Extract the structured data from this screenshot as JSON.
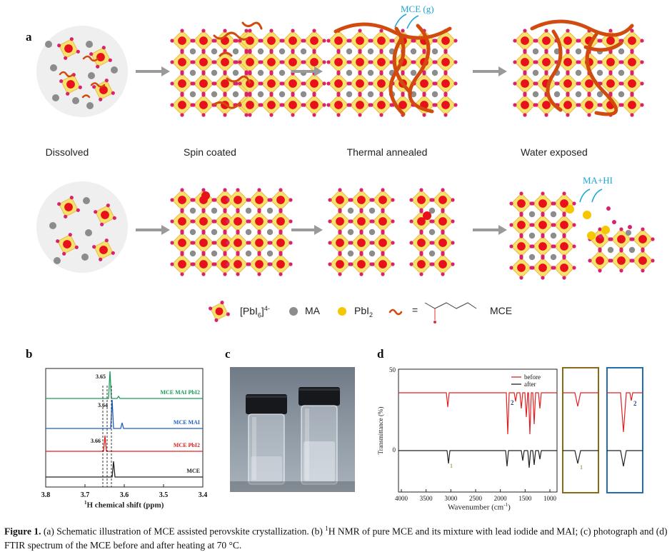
{
  "panels": {
    "a": {
      "letter": "a",
      "stages": [
        "Dissolved",
        "Spin coated",
        "Thermal annealed",
        "Water exposed"
      ],
      "gas_label_top": "MCE (g)",
      "gas_label_bottom": "MA+HI",
      "legend": {
        "pbi6_label": "[PbI6]4-",
        "ma_label": "MA",
        "pbi2_label": "PbI2",
        "equals": "=",
        "mce_label": "MCE"
      },
      "colors": {
        "octahedron": "#f7e36b",
        "octahedron_edge": "#e9b84a",
        "pb_center": "#e8101a",
        "iodide": "#d8226e",
        "ma": "#8c8c8c",
        "pbi2": "#f6c700",
        "mce": "#d14a0e",
        "arrow": "#9a9a9a",
        "gas": "#1aa7d6"
      }
    },
    "b": {
      "letter": "b",
      "xlabel_sup": "1",
      "xlabel": "H chemical shift (ppm)",
      "ticks": [
        "3.8",
        "3.7",
        "3.6",
        "3.5",
        "3.4"
      ],
      "traces": [
        {
          "name": "MCE MAI PbI2",
          "peak_label": "3.65",
          "color": "#1a9a5a"
        },
        {
          "name": "MCE MAI",
          "peak_label": "3.64",
          "color": "#1f5fbf"
        },
        {
          "name": "MCE PbI2",
          "peak_label": "3.66",
          "color": "#e02020"
        },
        {
          "name": "MCE",
          "peak_label": "",
          "color": "#222222"
        }
      ]
    },
    "c": {
      "letter": "c"
    },
    "d": {
      "letter": "d",
      "ylabel": "Transmittance (%)",
      "xlabel": "Wavenumber (cm-1)",
      "y_ticks": [
        "50",
        "0"
      ],
      "x_ticks": [
        "4000",
        "3500",
        "3000",
        "2500",
        "2000",
        "1500",
        "1000"
      ],
      "legend": [
        {
          "name": "before",
          "color": "#e02020"
        },
        {
          "name": "after",
          "color": "#222222"
        }
      ],
      "marker_1": "1",
      "marker_2": "2",
      "inset_colors": {
        "inset1": "#8a6a14",
        "inset2": "#1f6fb0"
      }
    }
  },
  "caption": {
    "label": "Figure 1.",
    "text_1": " (a) Schematic illustration of MCE assisted perovskite crystallization. (b) ",
    "text_sup": "1",
    "text_2": "H NMR of pure MCE and its mixture with lead iodide and MAI; (c) photograph and (d) FTIR spectrum of the MCE before and after heating at 70 °C."
  }
}
